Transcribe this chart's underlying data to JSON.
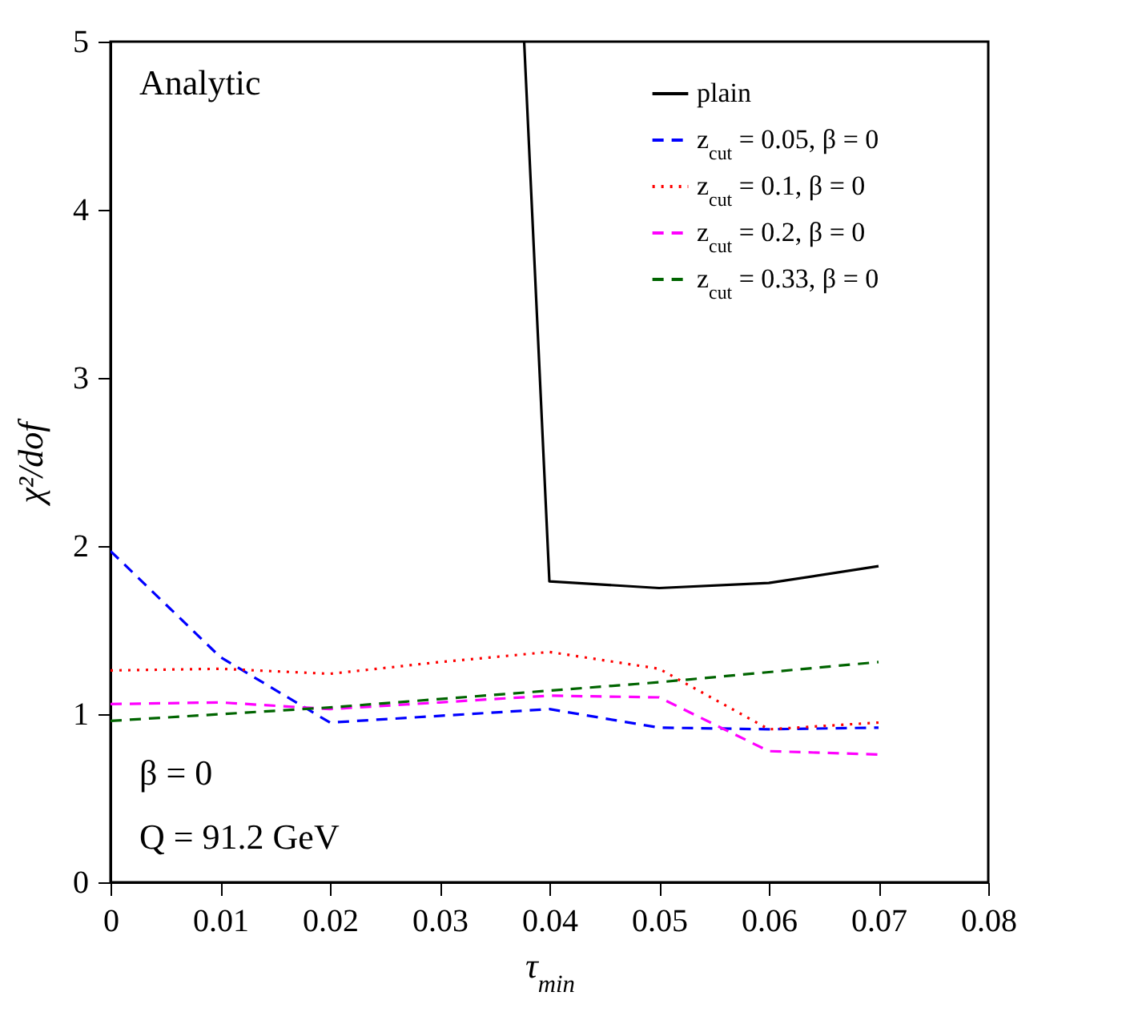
{
  "chart_data": {
    "type": "line",
    "xlabel": "τ$_{min}$",
    "ylabel": "χ²/dof",
    "x": [
      0,
      0.01,
      0.02,
      0.03,
      0.04,
      0.05,
      0.06,
      0.07
    ],
    "series": [
      {
        "name": "plain",
        "color": "#000000",
        "line_style": "solid",
        "x": [
          0.0377,
          0.04,
          0.05,
          0.06,
          0.07
        ],
        "values": [
          5,
          1.79,
          1.75,
          1.78,
          1.88
        ]
      },
      {
        "name": "z$_{cut}$ = 0.05, β = 0",
        "color": "#0000ff",
        "line_style": "dashed",
        "values": [
          1.97,
          1.34,
          0.95,
          0.99,
          1.03,
          0.92,
          0.91,
          0.92
        ]
      },
      {
        "name": "z$_{cut}$ = 0.1, β = 0",
        "color": "#ff0000",
        "line_style": "dotted",
        "values": [
          1.26,
          1.27,
          1.24,
          1.31,
          1.37,
          1.27,
          0.91,
          0.95
        ]
      },
      {
        "name": "z$_{cut}$ = 0.2, β = 0",
        "color": "#ff00ff",
        "line_style": "dashed",
        "values": [
          1.06,
          1.07,
          1.03,
          1.07,
          1.11,
          1.1,
          0.78,
          0.76
        ]
      },
      {
        "name": "z$_{cut}$ = 0.33, β = 0",
        "color": "#006400",
        "line_style": "dashed",
        "values": [
          0.96,
          1.0,
          1.04,
          1.09,
          1.14,
          1.19,
          1.25,
          1.31
        ]
      }
    ],
    "xlim": [
      0,
      0.08
    ],
    "xticks": [
      0,
      0.01,
      0.02,
      0.03,
      0.04,
      0.05,
      0.06,
      0.07,
      0.08
    ],
    "ylim": [
      0,
      5
    ],
    "yticks": [
      0,
      1,
      2,
      3,
      4,
      5
    ],
    "grid": false,
    "legend": "top right",
    "marker": "none",
    "annotations": [
      "Analytic",
      "β = 0",
      "Q = 91.2 GeV"
    ]
  }
}
